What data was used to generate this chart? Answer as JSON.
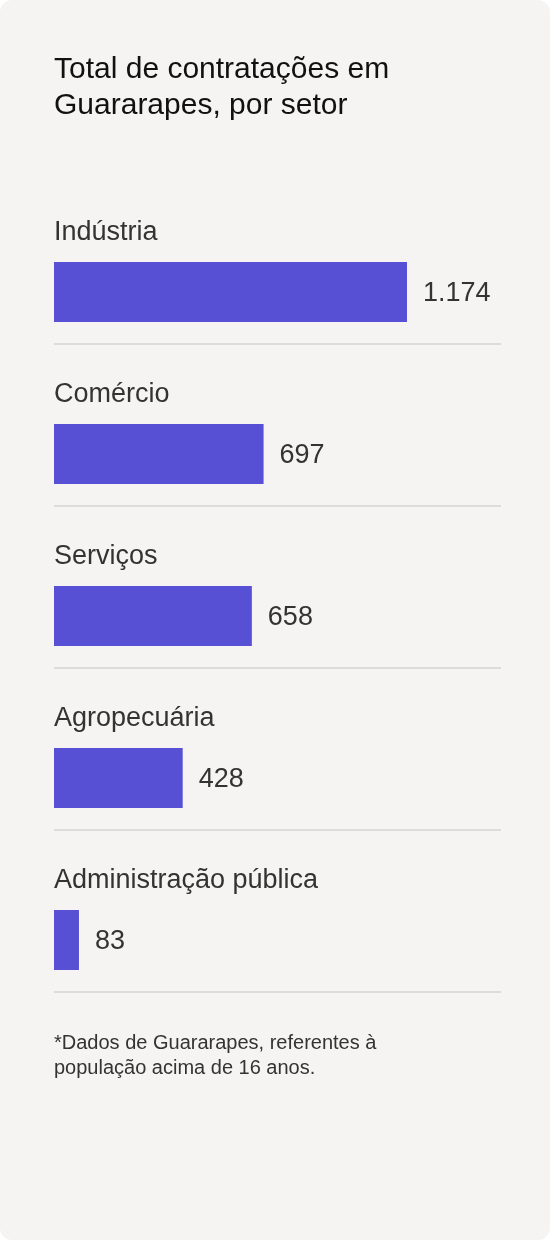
{
  "chart_data": {
    "type": "bar",
    "orientation": "horizontal",
    "title": "Total de contratações em Guararapes, por setor",
    "categories": [
      "Indústria",
      "Comércio",
      "Serviços",
      "Agropecuária",
      "Administração pública"
    ],
    "values": [
      1174,
      697,
      658,
      428,
      83
    ],
    "color": "#5750d4",
    "value_labels": [
      "1.174",
      "697",
      "658",
      "428",
      "83"
    ],
    "annotations": [
      "*Dados de Guararapes, referentes à população acima de 16 anos."
    ]
  }
}
